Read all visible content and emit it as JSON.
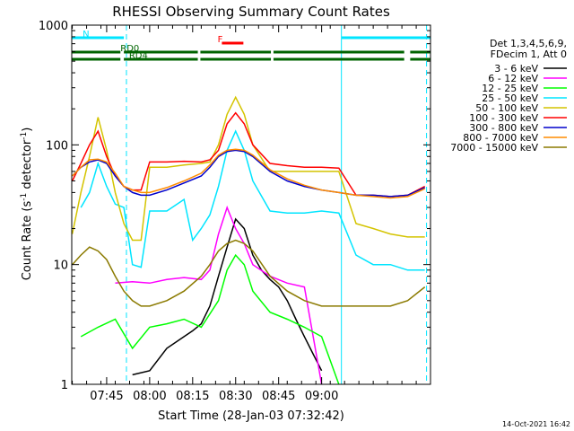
{
  "chart_data": {
    "type": "line",
    "title": "RHESSI Observing Summary Count Rates",
    "xlabel": "Start Time (28-Jan-03 07:32:42)",
    "ylabel_main": "Count Rate (s",
    "ylabel_sup1": "-1",
    "ylabel_mid": " detector",
    "ylabel_sup2": "-1",
    "ylabel_end": ")",
    "yscale": "log",
    "ylim": [
      1,
      1000
    ],
    "xlim_minutes": [
      7.547,
      9.633
    ],
    "x_unit": "hours of day (decimal)",
    "xticks": [
      {
        "v": 7.75,
        "label": "07:45"
      },
      {
        "v": 8.0,
        "label": "08:00"
      },
      {
        "v": 8.25,
        "label": "08:15"
      },
      {
        "v": 8.5,
        "label": "08:30"
      },
      {
        "v": 8.75,
        "label": "08:45"
      },
      {
        "v": 9.0,
        "label": "09:00"
      }
    ],
    "yticks": [
      {
        "v": 1,
        "label": "1"
      },
      {
        "v": 10,
        "label": "10"
      },
      {
        "v": 100,
        "label": "100"
      },
      {
        "v": 1000,
        "label": "1000"
      }
    ],
    "legend_header": [
      "Det 1,3,4,5,6,9,",
      "FDecim 1, Att 0"
    ],
    "legend_placement": "right",
    "timestamp": "14-Oct-2021 16:42",
    "flags": [
      {
        "label": "N",
        "color": "#00e5ff",
        "segments": [
          [
            7.547,
            7.85
          ],
          [
            9.115,
            9.633
          ]
        ]
      },
      {
        "label": "F",
        "color": "#ff0000",
        "segments": [
          [
            8.42,
            8.545
          ]
        ]
      },
      {
        "label": "RD0",
        "color": "#006400",
        "segments": [
          [
            7.547,
            7.83
          ],
          [
            7.85,
            8.28
          ],
          [
            8.295,
            8.705
          ],
          [
            8.72,
            9.48
          ],
          [
            9.515,
            9.633
          ]
        ]
      },
      {
        "label": "RD4",
        "color": "#006400",
        "segments": [
          [
            7.547,
            7.83
          ],
          [
            7.85,
            8.28
          ],
          [
            8.295,
            8.705
          ],
          [
            8.72,
            9.48
          ],
          [
            9.515,
            9.633
          ]
        ]
      }
    ],
    "night_lines": [
      {
        "x": 7.865,
        "style": "dashed"
      },
      {
        "x": 9.115,
        "style": "solid"
      },
      {
        "x": 9.61,
        "style": "dashed"
      }
    ],
    "series": [
      {
        "name": "3 - 6 keV",
        "color": "#000000",
        "x": [
          7.9,
          8.0,
          8.1,
          8.2,
          8.25,
          8.3,
          8.35,
          8.4,
          8.45,
          8.5,
          8.55,
          8.6,
          8.65,
          8.7,
          8.75,
          8.8,
          8.85,
          8.9,
          8.95,
          9.0
        ],
        "y": [
          1.2,
          1.3,
          2.0,
          2.5,
          2.8,
          3.2,
          4.5,
          8.0,
          14.0,
          24.0,
          20.0,
          12.0,
          9.0,
          7.5,
          6.5,
          5.0,
          3.5,
          2.5,
          1.8,
          1.3
        ]
      },
      {
        "name": "6 - 12 keV",
        "color": "#ff00ff",
        "x": [
          7.8,
          7.9,
          8.0,
          8.1,
          8.2,
          8.3,
          8.35,
          8.4,
          8.45,
          8.5,
          8.55,
          8.6,
          8.7,
          8.8,
          8.9,
          9.0
        ],
        "y": [
          7.0,
          7.2,
          7.0,
          7.5,
          7.8,
          7.5,
          9.0,
          18.0,
          30.0,
          20.0,
          15.0,
          10.0,
          8.0,
          7.0,
          6.5,
          1.0
        ]
      },
      {
        "name": "12 - 25 keV",
        "color": "#00ff00",
        "x": [
          7.6,
          7.7,
          7.8,
          7.9,
          8.0,
          8.1,
          8.2,
          8.3,
          8.4,
          8.45,
          8.5,
          8.55,
          8.6,
          8.7,
          8.8,
          8.9,
          9.0,
          9.1
        ],
        "y": [
          2.5,
          3.0,
          3.5,
          2.0,
          3.0,
          3.2,
          3.5,
          3.0,
          5.0,
          9.0,
          12.0,
          10.0,
          6.0,
          4.0,
          3.5,
          3.0,
          2.5,
          1.0
        ]
      },
      {
        "name": "25 - 50 keV",
        "color": "#00e5ff",
        "x": [
          7.6,
          7.65,
          7.7,
          7.75,
          7.8,
          7.85,
          7.9,
          7.95,
          8.0,
          8.1,
          8.2,
          8.25,
          8.3,
          8.35,
          8.4,
          8.45,
          8.5,
          8.55,
          8.6,
          8.7,
          8.8,
          8.9,
          9.0,
          9.1,
          9.2,
          9.3,
          9.4,
          9.5,
          9.6
        ],
        "y": [
          30.0,
          40.0,
          70.0,
          45.0,
          32.0,
          30.0,
          10.0,
          9.5,
          28.0,
          28.0,
          35.0,
          16.0,
          20.0,
          26.0,
          45.0,
          90.0,
          130.0,
          90.0,
          50.0,
          28.0,
          27.0,
          27.0,
          28.0,
          27.0,
          12.0,
          10.0,
          10.0,
          9.0,
          9.0
        ]
      },
      {
        "name": "50 - 100 keV",
        "color": "#d4c400",
        "x": [
          7.55,
          7.6,
          7.65,
          7.7,
          7.75,
          7.8,
          7.85,
          7.9,
          7.95,
          8.0,
          8.1,
          8.2,
          8.3,
          8.35,
          8.4,
          8.45,
          8.5,
          8.55,
          8.6,
          8.7,
          8.8,
          8.9,
          9.0,
          9.1,
          9.2,
          9.3,
          9.4,
          9.5,
          9.6
        ],
        "y": [
          18.0,
          40.0,
          80.0,
          170.0,
          90.0,
          40.0,
          22.0,
          16.0,
          16.0,
          65.0,
          65.0,
          68.0,
          70.0,
          72.0,
          100.0,
          180.0,
          250.0,
          180.0,
          100.0,
          60.0,
          60.0,
          60.0,
          60.0,
          60.0,
          22.0,
          20.0,
          18.0,
          17.0,
          17.0
        ]
      },
      {
        "name": "100 - 300 keV",
        "color": "#ff0000",
        "x": [
          7.55,
          7.6,
          7.65,
          7.7,
          7.75,
          7.8,
          7.85,
          7.9,
          7.95,
          8.0,
          8.1,
          8.2,
          8.3,
          8.35,
          8.4,
          8.45,
          8.5,
          8.55,
          8.6,
          8.7,
          8.8,
          8.9,
          9.0,
          9.1,
          9.2,
          9.3,
          9.4,
          9.5,
          9.6
        ],
        "y": [
          50.0,
          70.0,
          100.0,
          130.0,
          80.0,
          55.0,
          45.0,
          42.0,
          42.0,
          72.0,
          72.0,
          73.0,
          72.0,
          75.0,
          90.0,
          150.0,
          185.0,
          150.0,
          100.0,
          70.0,
          67.0,
          65.0,
          65.0,
          64.0,
          38.0,
          38.0,
          37.0,
          38.0,
          45.0
        ]
      },
      {
        "name": "300 - 800 keV",
        "color": "#0000cc",
        "x": [
          7.55,
          7.6,
          7.65,
          7.7,
          7.75,
          7.8,
          7.85,
          7.9,
          7.95,
          8.0,
          8.1,
          8.2,
          8.3,
          8.35,
          8.4,
          8.45,
          8.5,
          8.55,
          8.6,
          8.7,
          8.8,
          8.9,
          9.0,
          9.1,
          9.2,
          9.3,
          9.4,
          9.5,
          9.6
        ],
        "y": [
          55.0,
          65.0,
          72.0,
          75.0,
          70.0,
          55.0,
          45.0,
          40.0,
          38.0,
          38.0,
          42.0,
          48.0,
          55.0,
          65.0,
          80.0,
          88.0,
          90.0,
          88.0,
          80.0,
          60.0,
          50.0,
          45.0,
          42.0,
          40.0,
          38.0,
          38.0,
          37.0,
          38.0,
          44.0
        ]
      },
      {
        "name": "800 - 7000 keV",
        "color": "#ff8c00",
        "x": [
          7.55,
          7.6,
          7.65,
          7.7,
          7.75,
          7.8,
          7.85,
          7.9,
          7.95,
          8.0,
          8.1,
          8.2,
          8.3,
          8.35,
          8.4,
          8.45,
          8.5,
          8.55,
          8.6,
          8.7,
          8.8,
          8.9,
          9.0,
          9.1,
          9.2,
          9.3,
          9.4,
          9.5,
          9.6
        ],
        "y": [
          55.0,
          65.0,
          75.0,
          76.0,
          72.0,
          58.0,
          45.0,
          42.0,
          40.0,
          40.0,
          44.0,
          50.0,
          58.0,
          68.0,
          82.0,
          90.0,
          92.0,
          90.0,
          82.0,
          62.0,
          52.0,
          46.0,
          42.0,
          40.0,
          38.0,
          37.0,
          36.0,
          37.0,
          43.0
        ]
      },
      {
        "name": "7000 - 15000 keV",
        "color": "#8b7a00",
        "x": [
          7.55,
          7.6,
          7.65,
          7.7,
          7.75,
          7.8,
          7.85,
          7.9,
          7.95,
          8.0,
          8.1,
          8.2,
          8.3,
          8.35,
          8.4,
          8.45,
          8.5,
          8.55,
          8.6,
          8.7,
          8.8,
          8.9,
          9.0,
          9.1,
          9.2,
          9.3,
          9.4,
          9.5,
          9.6
        ],
        "y": [
          10.0,
          12.0,
          14.0,
          13.0,
          11.0,
          8.0,
          6.0,
          5.0,
          4.5,
          4.5,
          5.0,
          6.0,
          8.0,
          10.0,
          13.0,
          15.0,
          16.0,
          15.0,
          13.0,
          8.0,
          6.0,
          5.0,
          4.5,
          4.5,
          4.5,
          4.5,
          4.5,
          5.0,
          6.5
        ]
      }
    ]
  }
}
